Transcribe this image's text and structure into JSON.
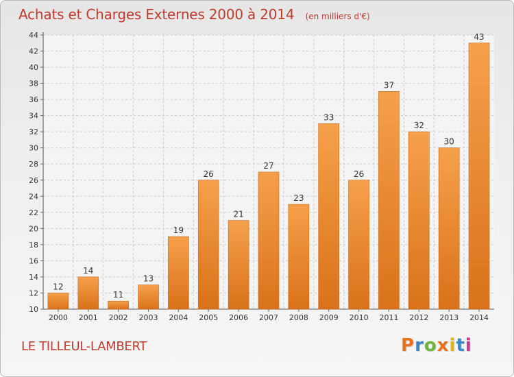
{
  "chart_data": {
    "type": "bar",
    "title": "Achats et Charges Externes 2000 à 2014",
    "unit": "(en milliers d'€)",
    "categories": [
      "2000",
      "2001",
      "2002",
      "2003",
      "2004",
      "2005",
      "2006",
      "2007",
      "2008",
      "2009",
      "2010",
      "2011",
      "2012",
      "2013",
      "2014"
    ],
    "values": [
      12,
      14,
      11,
      13,
      19,
      26,
      21,
      27,
      23,
      33,
      26,
      37,
      32,
      30,
      43
    ],
    "ylim": [
      10,
      44
    ],
    "yticks": [
      10,
      12,
      14,
      16,
      18,
      20,
      22,
      24,
      26,
      28,
      30,
      32,
      34,
      36,
      38,
      40,
      42,
      44
    ],
    "grid": true,
    "bar_color": "#f0922e",
    "title_color": "#c0392b"
  },
  "commune": "LE TILLEUL-LAMBERT",
  "logo": {
    "text": "Proxiti",
    "colors": [
      "#e8731e",
      "#3a86c6",
      "#6fb33f",
      "#e8731e",
      "#e0b21e",
      "#3a86c6",
      "#c43c8c"
    ]
  }
}
